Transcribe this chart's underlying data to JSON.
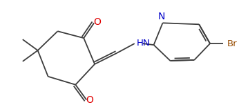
{
  "bg_color": "#ffffff",
  "bond_color": "#3d3d3d",
  "atom_colors": {
    "O": "#e00000",
    "N": "#0000c8",
    "Br": "#964b00",
    "HN": "#0000c8",
    "C": "#3d3d3d"
  },
  "lw": 1.3,
  "dbo": 3.2
}
